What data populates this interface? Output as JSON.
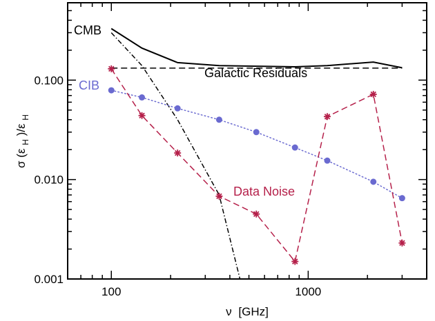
{
  "chart_data": {
    "type": "line",
    "xscale": "log",
    "yscale": "log",
    "xlim": [
      60,
      4000
    ],
    "ylim": [
      0.001,
      0.6
    ],
    "xlabel_symbol": "ν",
    "xlabel_unit": "[GHz]",
    "ylabel_sigma": "σ (ε",
    "ylabel_sub1": "H",
    "ylabel_mid": ")/ε",
    "ylabel_sub2": "H",
    "x_ticks": [
      {
        "value": 100,
        "label": "100"
      },
      {
        "value": 1000,
        "label": "1000"
      }
    ],
    "y_ticks": [
      {
        "value": 0.001,
        "label": "0.001"
      },
      {
        "value": 0.01,
        "label": "0.010"
      },
      {
        "value": 0.1,
        "label": "0.100"
      }
    ],
    "series": [
      {
        "name": "CMB",
        "color": "#000000",
        "style": "solid",
        "x": [
          100,
          143,
          217,
          353,
          545,
          857,
          1250,
          2143,
          3000
        ],
        "y": [
          0.33,
          0.21,
          0.15,
          0.14,
          0.138,
          0.136,
          0.14,
          0.152,
          0.133
        ]
      },
      {
        "name": "Galactic Residuals",
        "color": "#000000",
        "style": "dashed",
        "x": [
          100,
          3000
        ],
        "y": [
          0.132,
          0.132
        ]
      },
      {
        "name": "CMB",
        "color": "#000000",
        "style": "dashdot",
        "x": [
          100,
          143,
          217,
          353,
          450
        ],
        "y": [
          0.3,
          0.14,
          0.04,
          0.007,
          0.001
        ]
      },
      {
        "name": "CIB",
        "color": "#6a6ad0",
        "style": "dotted",
        "marker": "circle",
        "x": [
          100,
          143,
          217,
          353,
          545,
          857,
          1250,
          2143,
          3000
        ],
        "y": [
          0.079,
          0.067,
          0.052,
          0.04,
          0.03,
          0.021,
          0.0155,
          0.0095,
          0.0065
        ]
      },
      {
        "name": "Data Noise",
        "color": "#b5204a",
        "style": "dashed",
        "marker": "asterisk",
        "x": [
          100,
          143,
          217,
          353,
          545,
          857,
          1250,
          2143,
          3000
        ],
        "y": [
          0.13,
          0.044,
          0.0185,
          0.0068,
          0.0045,
          0.0015,
          0.043,
          0.072,
          0.0023
        ]
      }
    ],
    "annotations": [
      {
        "text": "CMB",
        "color": "#000000"
      },
      {
        "text": "Galactic Residuals",
        "color": "#000000"
      },
      {
        "text": "CIB",
        "color": "#6a6ad0"
      },
      {
        "text": "Data Noise",
        "color": "#b5204a"
      }
    ]
  }
}
